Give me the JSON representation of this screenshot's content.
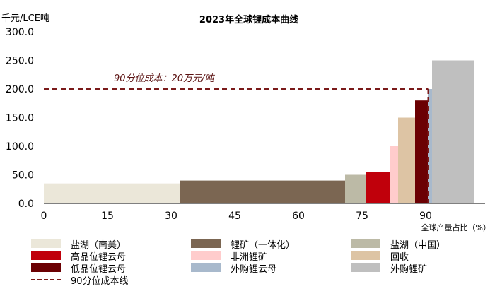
{
  "chart_data": {
    "type": "bar",
    "title": "2023年全球锂成本曲线",
    "ylabel": "千元/LCE吨",
    "xlabel": "全球产量占比（%）",
    "ylim": [
      0,
      300
    ],
    "yticks": [
      "0.0",
      "50.0",
      "100.0",
      "150.0",
      "200.0",
      "250.0",
      "300.0"
    ],
    "xlim": [
      0,
      104
    ],
    "xticks": [
      "0",
      "15",
      "30",
      "45",
      "60",
      "75",
      "90"
    ],
    "reference_line": {
      "label": "90分位成本：20万元/吨",
      "y": 200,
      "color": "#7a1a1a"
    },
    "segments": [
      {
        "name": "盐湖（南美）",
        "x_start": 0,
        "x_end": 32,
        "value": 35,
        "color": "#ebe7d9"
      },
      {
        "name": "锂矿（一体化）",
        "x_start": 32,
        "x_end": 71,
        "value": 40,
        "color": "#7b6652"
      },
      {
        "name": "盐湖（中国）",
        "x_start": 71,
        "x_end": 76,
        "value": 50,
        "color": "#bcbaa6"
      },
      {
        "name": "高品位锂云母",
        "x_start": 76,
        "x_end": 81.5,
        "value": 55,
        "color": "#c0000b"
      },
      {
        "name": "非洲锂矿",
        "x_start": 81.5,
        "x_end": 83.5,
        "value": 100,
        "color": "#ffcccc"
      },
      {
        "name": "回收",
        "x_start": 83.5,
        "x_end": 87.5,
        "value": 150,
        "color": "#ddc4a4"
      },
      {
        "name": "低品位锂云母",
        "x_start": 87.5,
        "x_end": 90.5,
        "value": 180,
        "color": "#6b0003"
      },
      {
        "name": "外购锂云母",
        "x_start": 90.5,
        "x_end": 91.5,
        "value": 200,
        "color": "#a8b9cc"
      },
      {
        "name": "外购锂矿",
        "x_start": 91.5,
        "x_end": 101.5,
        "value": 250,
        "color": "#bfbfbf"
      }
    ],
    "legend": {
      "placement": "bottom",
      "items": [
        {
          "label": "盐湖（南美）",
          "color": "#ebe7d9",
          "kind": "box"
        },
        {
          "label": "锂矿（一体化）",
          "color": "#7b6652",
          "kind": "box"
        },
        {
          "label": "盐湖（中国）",
          "color": "#bcbaa6",
          "kind": "box"
        },
        {
          "label": "高品位锂云母",
          "color": "#c0000b",
          "kind": "box"
        },
        {
          "label": "非洲锂矿",
          "color": "#ffcccc",
          "kind": "box"
        },
        {
          "label": "回收",
          "color": "#ddc4a4",
          "kind": "box"
        },
        {
          "label": "低品位锂云母",
          "color": "#6b0003",
          "kind": "box"
        },
        {
          "label": "外购锂云母",
          "color": "#a8b9cc",
          "kind": "box"
        },
        {
          "label": "外购锂矿",
          "color": "#bfbfbf",
          "kind": "box"
        },
        {
          "label": "90分位成本线",
          "color": "#7a1a1a",
          "kind": "dash"
        }
      ]
    }
  }
}
